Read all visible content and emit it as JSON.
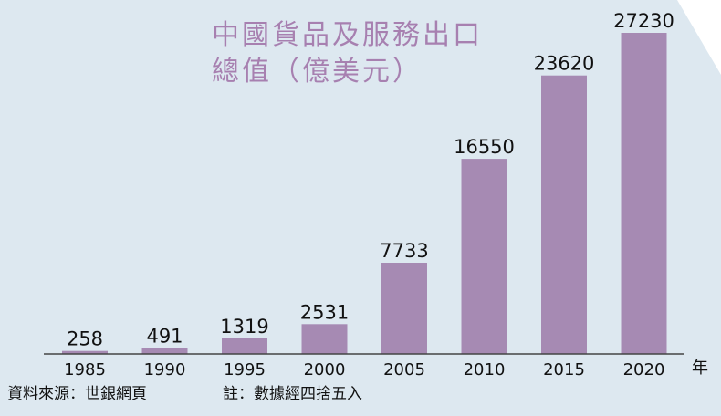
{
  "title": {
    "line1": "中國貨品及服務出口",
    "line2": "總值（億美元）"
  },
  "footnotes": {
    "source": "資料來源：世銀網頁",
    "rounding": "註：數據經四捨五入"
  },
  "colors": {
    "background": "#dde8f0",
    "corner": "#ffffff",
    "bar": "#a68ab3",
    "title": "#a780b0",
    "axis": "#444444",
    "text": "#111111"
  },
  "chart_data": {
    "type": "bar",
    "title": "中國貨品及服務出口總值（億美元）",
    "categories": [
      "1985",
      "1990",
      "1995",
      "2000",
      "2005",
      "2010",
      "2015",
      "2020"
    ],
    "values": [
      258,
      491,
      1319,
      2531,
      7733,
      16550,
      23620,
      27230
    ],
    "value_labels": [
      "258",
      "491",
      "1319",
      "2531",
      "7733",
      "16550",
      "23620",
      "27230"
    ],
    "x_unit": "年",
    "ylim": [
      0,
      28000
    ],
    "grid": false,
    "legend": "none"
  }
}
